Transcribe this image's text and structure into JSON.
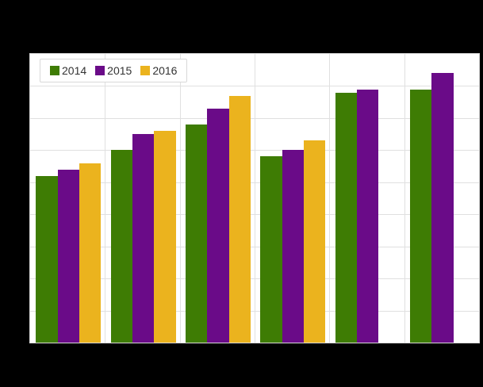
{
  "page": {
    "background_color": "#000000"
  },
  "legend": {
    "items": [
      {
        "label": "2014",
        "color": "#3e7c04"
      },
      {
        "label": "2015",
        "color": "#6a0b88"
      },
      {
        "label": "2016",
        "color": "#ebb31e"
      }
    ]
  },
  "chart_data": {
    "type": "bar",
    "title": "",
    "categories": [
      "",
      "",
      "",
      "",
      "",
      ""
    ],
    "series": [
      {
        "name": "2014",
        "color": "#3e7c04",
        "values": [
          52,
          60,
          68,
          58,
          78,
          79
        ]
      },
      {
        "name": "2015",
        "color": "#6a0b88",
        "values": [
          54,
          65,
          73,
          60,
          79,
          84
        ]
      },
      {
        "name": "2016",
        "color": "#ebb31e",
        "values": [
          56,
          66,
          77,
          63,
          null,
          null
        ]
      }
    ],
    "xlabel": "",
    "ylabel": "",
    "ylim": [
      0,
      90
    ],
    "y_gridline_step": 10,
    "grid": true,
    "legend_position": "top-left-inside",
    "axis_tick_labels_visible": false,
    "plot_background": "#ffffff",
    "gridline_color": "#e0e0e0",
    "frame_color": "#d8d8d8"
  }
}
